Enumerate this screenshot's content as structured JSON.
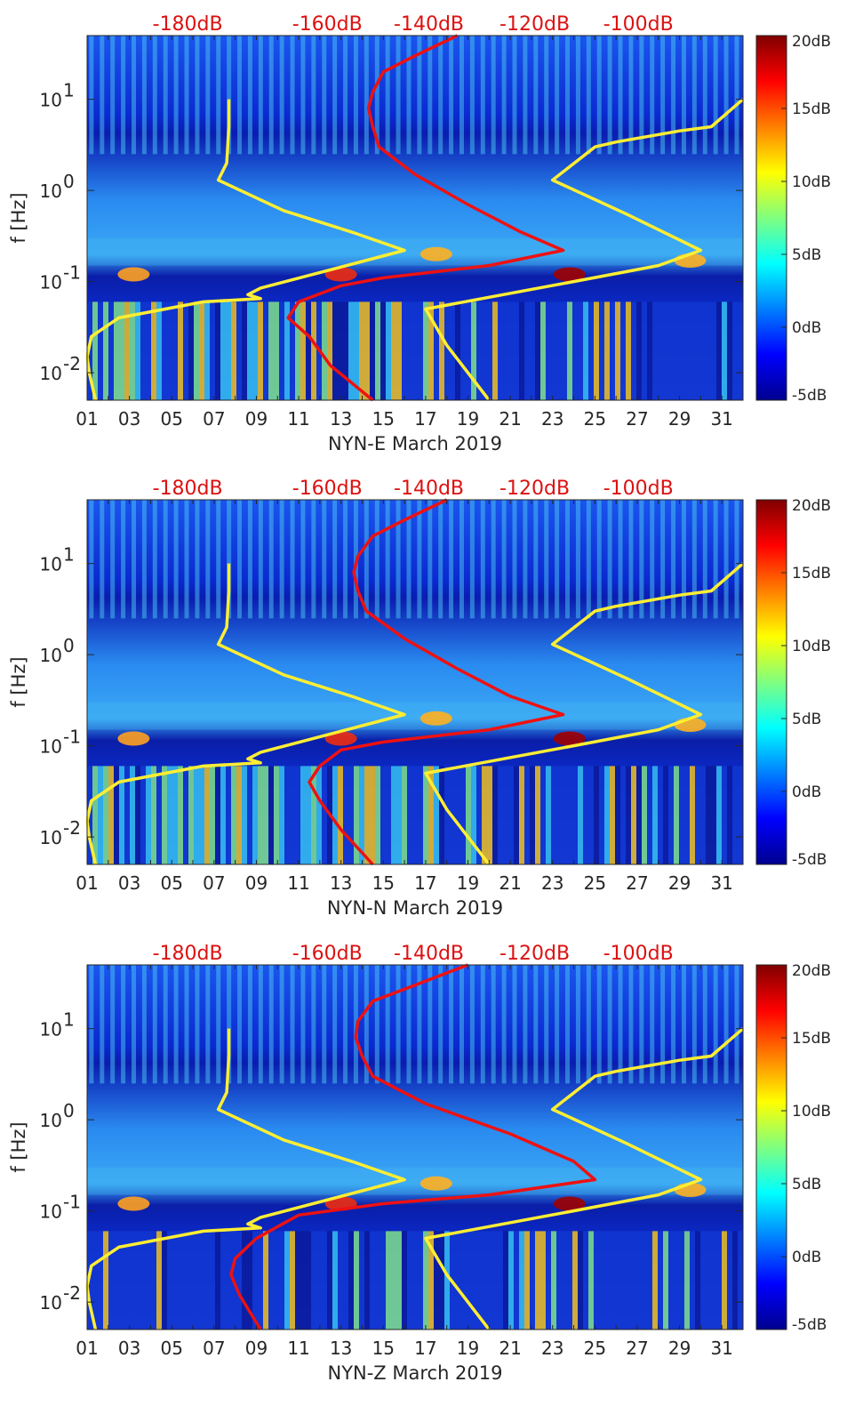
{
  "chart_data": [
    {
      "type": "heatmap",
      "station": "NYN-E",
      "xlabel": "NYN-E March 2019",
      "ylabel": "f [Hz]",
      "x_ticks": [
        "01",
        "03",
        "05",
        "07",
        "09",
        "11",
        "13",
        "15",
        "17",
        "19",
        "21",
        "23",
        "25",
        "27",
        "29",
        "31"
      ],
      "xlim": [
        1,
        32
      ],
      "y_scale": "log",
      "ylim": [
        0.005,
        50
      ],
      "y_ticks": [
        {
          "v": 0.01,
          "base": "10",
          "exp": "-2"
        },
        {
          "v": 0.1,
          "base": "10",
          "exp": "-1"
        },
        {
          "v": 1,
          "base": "10",
          "exp": "0"
        },
        {
          "v": 10,
          "base": "10",
          "exp": "1"
        }
      ],
      "top_labels": [
        "-180dB",
        "-160dB",
        "-140dB",
        "-120dB",
        "-100dB"
      ],
      "top_label_x": [
        3.4,
        10,
        14.8,
        19.8,
        24.7
      ],
      "colorbar": {
        "labels": [
          "20dB",
          "15dB",
          "10dB",
          "5dB",
          "0dB",
          "-5dB"
        ],
        "range": [
          -5,
          20
        ]
      },
      "series": [
        {
          "color": "#ffee33",
          "points": [
            [
              7.7,
              10
            ],
            [
              7.7,
              5
            ],
            [
              7.6,
              2
            ],
            [
              7.2,
              1.3
            ],
            [
              10.3,
              0.6
            ],
            [
              13.5,
              0.35
            ],
            [
              16,
              0.22
            ],
            [
              9.2,
              0.085
            ],
            [
              8.6,
              0.072
            ],
            [
              9.2,
              0.065
            ],
            [
              6.5,
              0.06
            ],
            [
              2.5,
              0.04
            ],
            [
              1.2,
              0.025
            ],
            [
              1,
              0.015
            ],
            [
              1.1,
              0.01
            ],
            [
              1.4,
              0.005
            ]
          ]
        },
        {
          "color": "#ffee33",
          "points": [
            [
              32,
              10
            ],
            [
              30.5,
              5
            ],
            [
              29,
              4.5
            ],
            [
              26,
              3.4
            ],
            [
              25,
              3
            ],
            [
              23,
              1.3
            ],
            [
              26.5,
              0.55
            ],
            [
              30,
              0.22
            ],
            [
              28,
              0.15
            ],
            [
              24,
              0.1
            ],
            [
              17,
              0.05
            ],
            [
              18,
              0.02
            ],
            [
              20,
              0.005
            ]
          ]
        },
        {
          "color": "#ee1111",
          "points": [
            [
              18.5,
              50
            ],
            [
              16.5,
              30
            ],
            [
              15,
              20
            ],
            [
              14.5,
              12
            ],
            [
              14.3,
              8
            ],
            [
              14.5,
              5
            ],
            [
              14.8,
              3
            ],
            [
              16.5,
              1.5
            ],
            [
              19,
              0.7
            ],
            [
              21.5,
              0.35
            ],
            [
              23.5,
              0.22
            ],
            [
              20,
              0.15
            ],
            [
              15,
              0.11
            ],
            [
              13,
              0.09
            ],
            [
              11,
              0.06
            ],
            [
              10.5,
              0.04
            ],
            [
              11.5,
              0.025
            ],
            [
              12.5,
              0.012
            ],
            [
              14.5,
              0.005
            ]
          ]
        }
      ]
    },
    {
      "type": "heatmap",
      "station": "NYN-N",
      "xlabel": "NYN-N March 2019",
      "ylabel": "f [Hz]",
      "x_ticks": [
        "01",
        "03",
        "05",
        "07",
        "09",
        "11",
        "13",
        "15",
        "17",
        "19",
        "21",
        "23",
        "25",
        "27",
        "29",
        "31"
      ],
      "xlim": [
        1,
        32
      ],
      "y_scale": "log",
      "ylim": [
        0.005,
        50
      ],
      "y_ticks": [
        {
          "v": 0.01,
          "base": "10",
          "exp": "-2"
        },
        {
          "v": 0.1,
          "base": "10",
          "exp": "-1"
        },
        {
          "v": 1,
          "base": "10",
          "exp": "0"
        },
        {
          "v": 10,
          "base": "10",
          "exp": "1"
        }
      ],
      "top_labels": [
        "-180dB",
        "-160dB",
        "-140dB",
        "-120dB",
        "-100dB"
      ],
      "top_label_x": [
        3.4,
        10,
        14.8,
        19.8,
        24.7
      ],
      "colorbar": {
        "labels": [
          "20dB",
          "15dB",
          "10dB",
          "5dB",
          "0dB",
          "-5dB"
        ],
        "range": [
          -5,
          20
        ]
      },
      "series": [
        {
          "color": "#ffee33",
          "points": [
            [
              7.7,
              10
            ],
            [
              7.7,
              5
            ],
            [
              7.6,
              2
            ],
            [
              7.2,
              1.3
            ],
            [
              10.3,
              0.6
            ],
            [
              13.5,
              0.35
            ],
            [
              16,
              0.22
            ],
            [
              9.2,
              0.085
            ],
            [
              8.6,
              0.072
            ],
            [
              9.2,
              0.065
            ],
            [
              6.5,
              0.06
            ],
            [
              2.5,
              0.04
            ],
            [
              1.2,
              0.025
            ],
            [
              1,
              0.015
            ],
            [
              1.1,
              0.01
            ],
            [
              1.4,
              0.005
            ]
          ]
        },
        {
          "color": "#ffee33",
          "points": [
            [
              32,
              10
            ],
            [
              30.5,
              5
            ],
            [
              29,
              4.5
            ],
            [
              26,
              3.4
            ],
            [
              25,
              3
            ],
            [
              23,
              1.3
            ],
            [
              26.5,
              0.55
            ],
            [
              30,
              0.22
            ],
            [
              28,
              0.15
            ],
            [
              24,
              0.1
            ],
            [
              17,
              0.05
            ],
            [
              18,
              0.02
            ],
            [
              20,
              0.005
            ]
          ]
        },
        {
          "color": "#ee1111",
          "points": [
            [
              18,
              50
            ],
            [
              16,
              30
            ],
            [
              14.5,
              20
            ],
            [
              13.8,
              12
            ],
            [
              13.6,
              8
            ],
            [
              13.8,
              5
            ],
            [
              14.2,
              3
            ],
            [
              16,
              1.5
            ],
            [
              18.5,
              0.7
            ],
            [
              21,
              0.35
            ],
            [
              23.5,
              0.22
            ],
            [
              20,
              0.15
            ],
            [
              15,
              0.11
            ],
            [
              13,
              0.09
            ],
            [
              12,
              0.06
            ],
            [
              11.5,
              0.04
            ],
            [
              12,
              0.025
            ],
            [
              13,
              0.012
            ],
            [
              14.5,
              0.005
            ]
          ]
        }
      ]
    },
    {
      "type": "heatmap",
      "station": "NYN-Z",
      "xlabel": "NYN-Z March 2019",
      "ylabel": "f [Hz]",
      "x_ticks": [
        "01",
        "03",
        "05",
        "07",
        "09",
        "11",
        "13",
        "15",
        "17",
        "19",
        "21",
        "23",
        "25",
        "27",
        "29",
        "31"
      ],
      "xlim": [
        1,
        32
      ],
      "y_scale": "log",
      "ylim": [
        0.005,
        50
      ],
      "y_ticks": [
        {
          "v": 0.01,
          "base": "10",
          "exp": "-2"
        },
        {
          "v": 0.1,
          "base": "10",
          "exp": "-1"
        },
        {
          "v": 1,
          "base": "10",
          "exp": "0"
        },
        {
          "v": 10,
          "base": "10",
          "exp": "1"
        }
      ],
      "top_labels": [
        "-180dB",
        "-160dB",
        "-140dB",
        "-120dB",
        "-100dB"
      ],
      "top_label_x": [
        3.4,
        10,
        14.8,
        19.8,
        24.7
      ],
      "colorbar": {
        "labels": [
          "20dB",
          "15dB",
          "10dB",
          "5dB",
          "0dB",
          "-5dB"
        ],
        "range": [
          -5,
          20
        ]
      },
      "series": [
        {
          "color": "#ffee33",
          "points": [
            [
              7.7,
              10
            ],
            [
              7.7,
              5
            ],
            [
              7.6,
              2
            ],
            [
              7.2,
              1.3
            ],
            [
              10.3,
              0.6
            ],
            [
              13.5,
              0.35
            ],
            [
              16,
              0.22
            ],
            [
              9.2,
              0.085
            ],
            [
              8.6,
              0.072
            ],
            [
              9.2,
              0.065
            ],
            [
              6.5,
              0.06
            ],
            [
              2.5,
              0.04
            ],
            [
              1.2,
              0.025
            ],
            [
              1,
              0.015
            ],
            [
              1.1,
              0.01
            ],
            [
              1.4,
              0.005
            ]
          ]
        },
        {
          "color": "#ffee33",
          "points": [
            [
              32,
              10
            ],
            [
              30.5,
              5
            ],
            [
              29,
              4.5
            ],
            [
              26,
              3.4
            ],
            [
              25,
              3
            ],
            [
              23,
              1.3
            ],
            [
              26.5,
              0.55
            ],
            [
              30,
              0.22
            ],
            [
              28,
              0.15
            ],
            [
              24,
              0.1
            ],
            [
              17,
              0.05
            ],
            [
              18,
              0.02
            ],
            [
              20,
              0.005
            ]
          ]
        },
        {
          "color": "#ee1111",
          "points": [
            [
              19,
              50
            ],
            [
              16.5,
              30
            ],
            [
              14.5,
              20
            ],
            [
              13.8,
              12
            ],
            [
              13.7,
              8
            ],
            [
              14,
              5
            ],
            [
              14.5,
              3
            ],
            [
              17,
              1.5
            ],
            [
              21,
              0.7
            ],
            [
              24,
              0.35
            ],
            [
              25,
              0.22
            ],
            [
              20,
              0.15
            ],
            [
              15,
              0.12
            ],
            [
              11,
              0.09
            ],
            [
              9,
              0.05
            ],
            [
              8,
              0.03
            ],
            [
              7.8,
              0.02
            ],
            [
              8.2,
              0.012
            ],
            [
              9.2,
              0.005
            ]
          ]
        }
      ]
    }
  ]
}
